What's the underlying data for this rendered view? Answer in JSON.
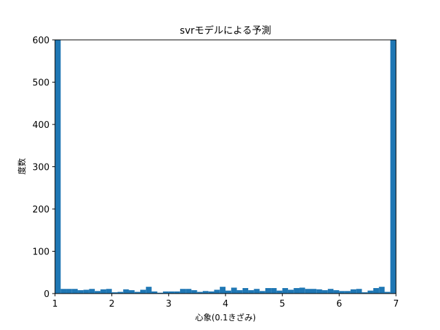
{
  "chart_data": {
    "type": "bar",
    "title": "svrモデルによる予測",
    "xlabel": "心象(0.1きざみ)",
    "ylabel": "度数",
    "xlim": [
      1,
      7
    ],
    "ylim": [
      0,
      600
    ],
    "xticks": [
      "1",
      "2",
      "3",
      "4",
      "5",
      "6",
      "7"
    ],
    "yticks": [
      "0",
      "100",
      "200",
      "300",
      "400",
      "500",
      "600"
    ],
    "bin_width": 0.1,
    "bar_color": "#1f77b4",
    "grid": false,
    "series": [
      {
        "bin_start": [
          1.0,
          1.1,
          1.2,
          1.3,
          1.4,
          1.5,
          1.6,
          1.7,
          1.8,
          1.9,
          2.0,
          2.1,
          2.2,
          2.3,
          2.4,
          2.5,
          2.6,
          2.7,
          2.8,
          2.9,
          3.0,
          3.1,
          3.2,
          3.3,
          3.4,
          3.5,
          3.6,
          3.7,
          3.8,
          3.9,
          4.0,
          4.1,
          4.2,
          4.3,
          4.4,
          4.5,
          4.6,
          4.7,
          4.8,
          4.9,
          5.0,
          5.1,
          5.2,
          5.3,
          5.4,
          5.5,
          5.6,
          5.7,
          5.8,
          5.9,
          6.0,
          6.1,
          6.2,
          6.3,
          6.4,
          6.5,
          6.6,
          6.7,
          6.8,
          6.9
        ],
        "values": [
          600,
          11,
          11,
          11,
          8,
          9,
          11,
          6,
          10,
          11,
          3,
          4,
          10,
          8,
          4,
          9,
          16,
          5,
          2,
          5,
          5,
          5,
          11,
          11,
          8,
          4,
          6,
          5,
          9,
          16,
          7,
          14,
          8,
          13,
          8,
          11,
          6,
          13,
          13,
          7,
          13,
          9,
          13,
          14,
          11,
          11,
          10,
          8,
          11,
          8,
          6,
          6,
          10,
          11,
          3,
          7,
          13,
          16,
          4,
          600
        ]
      }
    ]
  }
}
